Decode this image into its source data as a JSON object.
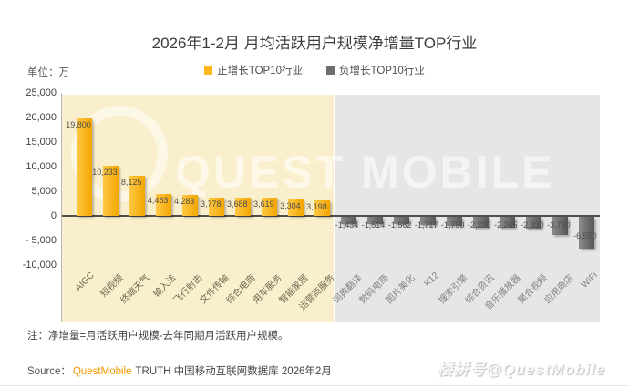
{
  "header": {
    "title": "2026年1-2月 月均活跃用户规模净增量TOP行业",
    "unit_label": "单位：万"
  },
  "legend": {
    "items": [
      {
        "label": "正增长TOP10行业",
        "color": "#FFB81C"
      },
      {
        "label": "负增长TOP10行业",
        "color": "#6E6E6E"
      }
    ]
  },
  "chart_data": {
    "type": "bar",
    "title": "2026年1-2月 月均活跃用户规模净增量TOP行业",
    "unit": "万",
    "categories": [
      "AIGC",
      "短视频",
      "终端天气",
      "输入法",
      "飞行射击",
      "文件传输",
      "综合电商",
      "用车服务",
      "智能家居",
      "运营商服务",
      "词典翻译",
      "数码电商",
      "图片美化",
      "K12",
      "搜索引擎",
      "综合资讯",
      "音乐播放器",
      "聚合视频",
      "应用商店",
      "WiFi"
    ],
    "values": [
      19800,
      10233,
      8125,
      4463,
      4283,
      3778,
      3688,
      3619,
      3304,
      3198,
      -1434,
      -1514,
      -1562,
      -1717,
      -1790,
      -2220,
      -2245,
      -2330,
      -3780,
      -6550
    ],
    "value_labels": [
      "19,800",
      "10,233",
      "8,125",
      "4,463",
      "4,283",
      "3,778",
      "3,688",
      "3,619",
      "3,304",
      "3,198",
      "-1,434",
      "-1,514",
      "-1,562",
      "-1,717",
      "-1,790",
      "-2,220",
      "-2,245",
      "-2,330",
      "-3,780",
      "-6,550"
    ],
    "legend": [
      "正增长TOP10行业",
      "负增长TOP10行业"
    ],
    "legend_position": "top",
    "grid": false,
    "ylim": [
      -10000,
      25000
    ],
    "yticks": [
      {
        "value": 25000,
        "label": "25,000"
      },
      {
        "value": 20000,
        "label": "20,000"
      },
      {
        "value": 15000,
        "label": "15,000"
      },
      {
        "value": 10000,
        "label": "10,000"
      },
      {
        "value": 5000,
        "label": "5,000"
      },
      {
        "value": 0,
        "label": "0"
      },
      {
        "value": -5000,
        "label": "- 5,000"
      },
      {
        "value": -10000,
        "label": "-10,000"
      }
    ],
    "positive_color": "#F7A823",
    "negative_color": "#6F6F6F",
    "positive_panel_color": "#FAEFCD",
    "negative_panel_color": "#E6E6E6"
  },
  "note": "注：净增量=月活跃用户规模-去年同期月活跃用户规模。",
  "source": {
    "label": "Source：",
    "brand": "QuestMobile",
    "rest": "TRUTH 中国移动互联网数据库 2026年2月"
  },
  "watermarks": {
    "chart_text": "QUEST MOBILE",
    "badge_text": "楼拼号@QuestMobile"
  }
}
